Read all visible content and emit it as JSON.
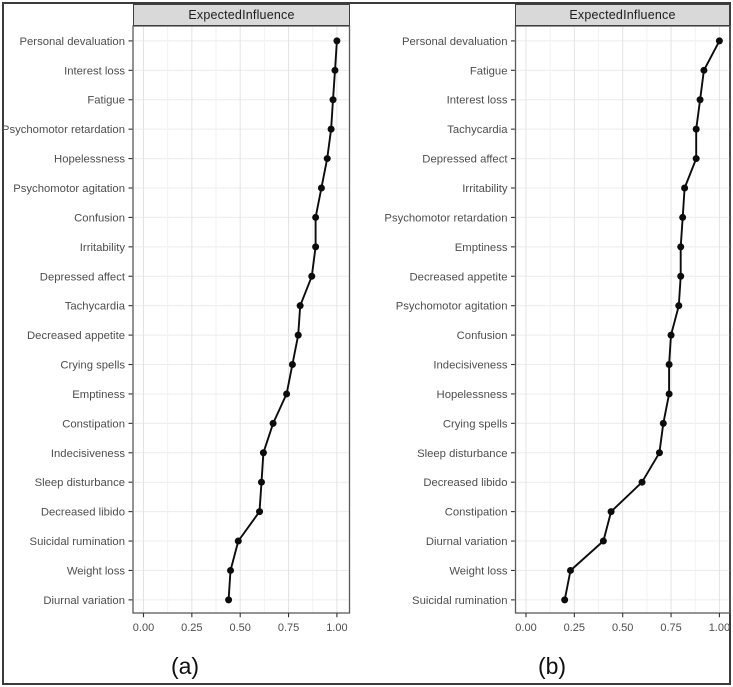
{
  "colors": {
    "background": "#ffffff",
    "figure_border": "#3b3b3b",
    "header_bg": "#d9d9d9",
    "header_border": "#3f3f3f",
    "panel_border": "#5a5a5a",
    "grid_major": "#e3e3e3",
    "grid_minor": "#f2f2f2",
    "axis_text": "#4d4d4d",
    "tick_mark": "#333333",
    "line": "#0c0c0c",
    "point": "#0c0c0c"
  },
  "chart_data": [
    {
      "type": "scatter",
      "subtype": "horizontal-dot-line-plot",
      "title": "ExpectedInfluence",
      "caption": "(a)",
      "xlabel": "",
      "ylabel": "",
      "xlim": [
        0,
        1
      ],
      "xticks": [
        0,
        0.25,
        0.5,
        0.75,
        1
      ],
      "xtick_labels": [
        "0.00",
        "0.25",
        "0.50",
        "0.75",
        "1.00"
      ],
      "grid": "major and minor vertical, major horizontal per category",
      "legend": "none",
      "categories": [
        "Personal devaluation",
        "Interest loss",
        "Fatigue",
        "Psychomotor retardation",
        "Hopelessness",
        "Psychomotor agitation",
        "Confusion",
        "Irritability",
        "Depressed affect",
        "Tachycardia",
        "Decreased appetite",
        "Crying spells",
        "Emptiness",
        "Constipation",
        "Indecisiveness",
        "Sleep disturbance",
        "Decreased libido",
        "Suicidal rumination",
        "Weight loss",
        "Diurnal variation"
      ],
      "values": [
        1.0,
        0.99,
        0.98,
        0.97,
        0.95,
        0.92,
        0.89,
        0.89,
        0.87,
        0.81,
        0.8,
        0.77,
        0.74,
        0.67,
        0.62,
        0.61,
        0.6,
        0.49,
        0.45,
        0.44
      ]
    },
    {
      "type": "scatter",
      "subtype": "horizontal-dot-line-plot",
      "title": "ExpectedInfluence",
      "caption": "(b)",
      "xlabel": "",
      "ylabel": "",
      "xlim": [
        0,
        1
      ],
      "xticks": [
        0,
        0.25,
        0.5,
        0.75,
        1
      ],
      "xtick_labels": [
        "0.00",
        "0.25",
        "0.50",
        "0.75",
        "1.00"
      ],
      "grid": "major and minor vertical, major horizontal per category",
      "legend": "none",
      "categories": [
        "Personal devaluation",
        "Fatigue",
        "Interest loss",
        "Tachycardia",
        "Depressed affect",
        "Irritability",
        "Psychomotor retardation",
        "Emptiness",
        "Decreased appetite",
        "Psychomotor agitation",
        "Confusion",
        "Indecisiveness",
        "Hopelessness",
        "Crying spells",
        "Sleep disturbance",
        "Decreased libido",
        "Constipation",
        "Diurnal variation",
        "Weight loss",
        "Suicidal rumination"
      ],
      "values": [
        1.0,
        0.92,
        0.9,
        0.88,
        0.88,
        0.82,
        0.81,
        0.8,
        0.8,
        0.79,
        0.75,
        0.74,
        0.74,
        0.71,
        0.69,
        0.6,
        0.44,
        0.4,
        0.23,
        0.2
      ]
    }
  ]
}
